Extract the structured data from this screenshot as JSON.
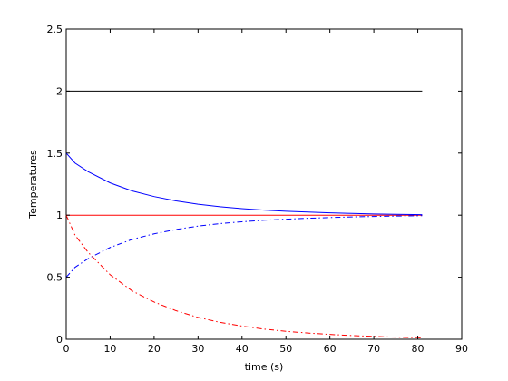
{
  "chart_data": {
    "type": "line",
    "xlabel": "time (s)",
    "ylabel": "Temperatures",
    "xlim": [
      0,
      90
    ],
    "ylim": [
      0,
      2.5
    ],
    "xticks": [
      0,
      10,
      20,
      30,
      40,
      50,
      60,
      70,
      80,
      90
    ],
    "yticks": [
      0,
      0.5,
      1,
      1.5,
      2,
      2.5
    ],
    "xtick_labels": [
      "0",
      "10",
      "20",
      "30",
      "40",
      "50",
      "60",
      "70",
      "80",
      "90"
    ],
    "ytick_labels": [
      "0",
      "0.5",
      "1",
      "1.5",
      "2",
      "2.5"
    ],
    "grid": false,
    "series": [
      {
        "color": "#000000",
        "style": "solid",
        "x": [
          0,
          81
        ],
        "y": [
          2,
          2
        ]
      },
      {
        "color": "#ff0000",
        "style": "solid",
        "x": [
          0,
          81
        ],
        "y": [
          1,
          1
        ]
      },
      {
        "color": "#0000ff",
        "style": "solid",
        "x": [
          0,
          2,
          5,
          10,
          15,
          20,
          25,
          30,
          35,
          40,
          45,
          50,
          55,
          60,
          65,
          70,
          75,
          81
        ],
        "y": [
          1.5,
          1.42,
          1.35,
          1.26,
          1.195,
          1.15,
          1.115,
          1.088,
          1.068,
          1.053,
          1.041,
          1.032,
          1.025,
          1.019,
          1.014,
          1.01,
          1.007,
          1.004
        ]
      },
      {
        "color": "#0000ff",
        "style": "dashdot",
        "x": [
          0,
          2,
          5,
          10,
          15,
          20,
          25,
          30,
          35,
          40,
          45,
          50,
          55,
          60,
          65,
          70,
          75,
          81
        ],
        "y": [
          0.5,
          0.58,
          0.65,
          0.74,
          0.805,
          0.85,
          0.885,
          0.912,
          0.932,
          0.947,
          0.959,
          0.968,
          0.975,
          0.981,
          0.986,
          0.99,
          0.993,
          0.996
        ]
      },
      {
        "color": "#ff0000",
        "style": "dashdot",
        "x": [
          0,
          2,
          5,
          10,
          15,
          20,
          25,
          30,
          35,
          40,
          45,
          50,
          55,
          60,
          65,
          70,
          75,
          81
        ],
        "y": [
          1,
          0.84,
          0.7,
          0.52,
          0.39,
          0.3,
          0.23,
          0.176,
          0.136,
          0.106,
          0.082,
          0.064,
          0.05,
          0.039,
          0.03,
          0.023,
          0.017,
          0.012
        ]
      }
    ]
  }
}
